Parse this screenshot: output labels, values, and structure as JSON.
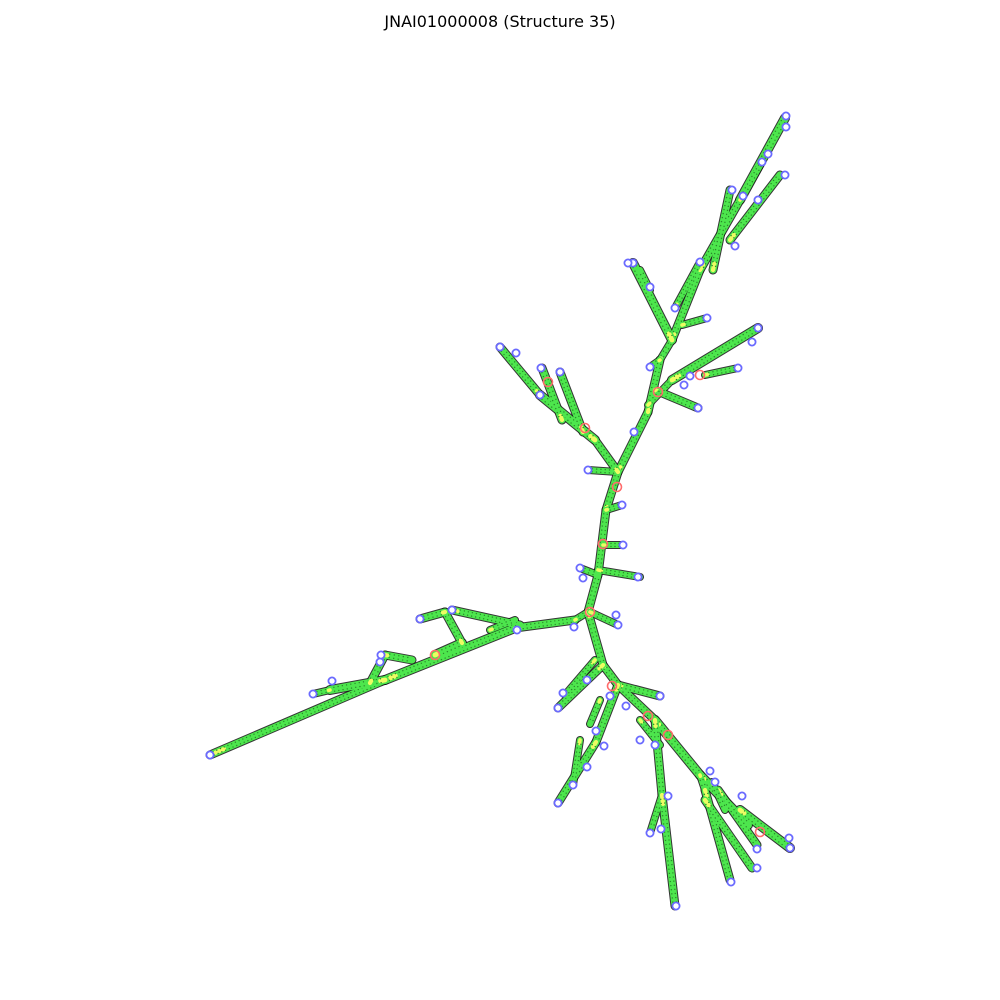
{
  "title": "JNAI01000008 (Structure 35)",
  "colors": {
    "background": "#ffffff",
    "stem": "#4de64d",
    "pair_dot": "#2a8a2a",
    "backbone": "#111111",
    "hairpin_loop": "#6a6aff",
    "interior_loop": "#ff6b6b",
    "unpaired": "#ffff66"
  },
  "legend": []
}
